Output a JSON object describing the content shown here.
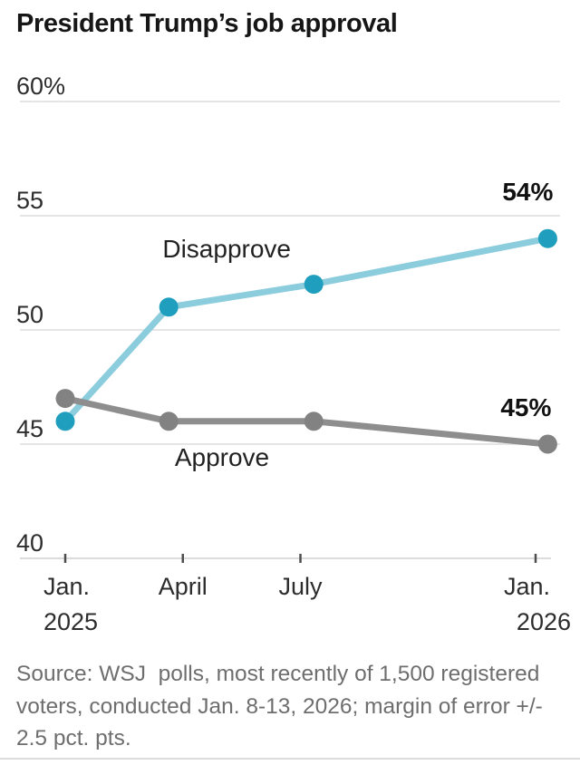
{
  "header": {
    "title": "President Trump’s job approval"
  },
  "footer": {
    "source": "Source: WSJ  polls, most recently of 1,500 registered voters, conducted Jan. 8-13, 2026; margin of error +/- 2.5 pct. pts."
  },
  "colors": {
    "disapprove_marker": "#1f9fbd",
    "disapprove_line": "#8bccdd",
    "approve_marker": "#828282",
    "approve_line": "#8e8e8e",
    "gridline": "#e5e5e5",
    "axis_line": "#dcdcdc",
    "axis_tick": "#4d4d4d",
    "tick_label": "#2d2d2d",
    "series_label": "#222222",
    "end_label": "#111111"
  },
  "chart_data": {
    "type": "line",
    "title": "President Trump’s job approval",
    "xlabel": "",
    "ylabel": "",
    "ylim": [
      40,
      60
    ],
    "grid": true,
    "legend_position": "inline-labels",
    "x_unit": "months since Jan. 2025",
    "y_ticks": [
      {
        "value": 60,
        "label": "60%"
      },
      {
        "value": 55,
        "label": "55"
      },
      {
        "value": 50,
        "label": "50"
      },
      {
        "value": 45,
        "label": "45"
      },
      {
        "value": 40,
        "label": "40"
      }
    ],
    "x_ticks": [
      {
        "month": 0,
        "label": "Jan.",
        "sublabel": "2025",
        "align": "left"
      },
      {
        "month": 3,
        "label": "April",
        "sublabel": "",
        "align": "center"
      },
      {
        "month": 6,
        "label": "July",
        "sublabel": "",
        "align": "center"
      },
      {
        "month": 12,
        "label": "Jan.",
        "sublabel": "2026",
        "align": "right"
      }
    ],
    "series": [
      {
        "name": "Disapprove",
        "marker_color": "#1f9fbd",
        "line_color": "#8bccdd",
        "points": [
          {
            "x_month": 0.0,
            "value": 46
          },
          {
            "x_month": 2.64,
            "value": 51
          },
          {
            "x_month": 6.34,
            "value": 52
          },
          {
            "x_month": 12.31,
            "value": 54
          }
        ],
        "end_label": "54%",
        "end_label_offset": {
          "dx": 6,
          "dy": -42
        },
        "series_label": {
          "text": "Disapprove",
          "x_month": 4.12,
          "value": 53.17
        }
      },
      {
        "name": "Approve",
        "marker_color": "#828282",
        "line_color": "#8e8e8e",
        "points": [
          {
            "x_month": 0.0,
            "value": 47
          },
          {
            "x_month": 2.64,
            "value": 46
          },
          {
            "x_month": 6.34,
            "value": 46
          },
          {
            "x_month": 12.31,
            "value": 45
          }
        ],
        "end_label": "45%",
        "end_label_offset": {
          "dx": 4,
          "dy": -31
        },
        "series_label": {
          "text": "Approve",
          "x_month": 4.0,
          "value": 44.05
        }
      }
    ]
  }
}
